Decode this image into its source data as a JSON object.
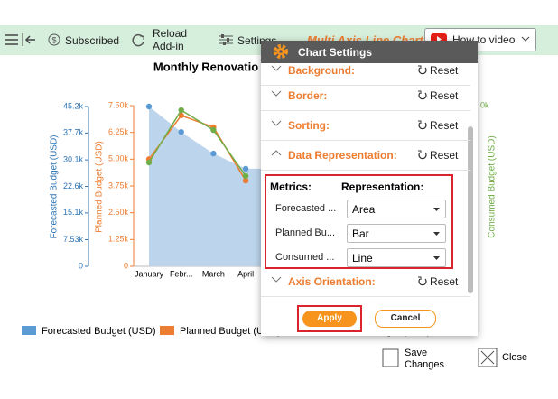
{
  "toolbar": {
    "subscribed": "Subscribed",
    "reload": [
      "Reload",
      "Add-in"
    ],
    "settings": "Settings",
    "chart_name": "Multi Axis Line Chart",
    "video": "How to video"
  },
  "chart": {
    "title": "Monthly Renovatio",
    "categories": [
      "January",
      "Febr...",
      "March",
      "April"
    ],
    "y_label": "Forecasted Budget (USD)",
    "ylim": [
      0,
      45200
    ],
    "yticks": [
      0,
      {
        "value": 7530,
        "label": "7.53k"
      },
      {
        "value": 15100,
        "label": "15.1k"
      },
      {
        "value": 22600,
        "label": "22.6k"
      },
      {
        "value": 30100,
        "label": "30.1k"
      },
      {
        "value": 37700,
        "label": "37.7k"
      },
      {
        "value": 45200,
        "label": "45.2k"
      }
    ],
    "y_color": "#2e75b6",
    "y3_label": "Planned Budget (USD)",
    "y3lim": [
      0,
      7500
    ],
    "y3ticks": [
      0,
      {
        "value": 1250,
        "label": "1.25k"
      },
      {
        "value": 2500,
        "label": "2.50k"
      },
      {
        "value": 3750,
        "label": "3.75k"
      },
      {
        "value": 5000,
        "label": "5.00k"
      },
      {
        "value": 6250,
        "label": "6.25k"
      },
      {
        "value": 7500,
        "label": "7.50k"
      }
    ],
    "y3_color": "#ed7d31",
    "y2_label": "Consumed Budget (USD)",
    "y2lim": [
      0,
      50000
    ],
    "y2_tick_fragment": "0k",
    "y2_color": "#70ad47",
    "series": [
      {
        "name": "Forecasted Budget (USD)",
        "color": "#5b9bd5",
        "values": [
          45200,
          38000,
          31900,
          27600
        ]
      },
      {
        "name": "Planned Budget (USD)",
        "color": "#ed7d31",
        "axis": "y3",
        "values": [
          5000,
          7040,
          6490,
          4000
        ]
      },
      {
        "name": "Consumed Budget (USD)",
        "color": "#70ad47",
        "axis": "y2",
        "values": [
          32300,
          48600,
          42400,
          28100
        ]
      }
    ]
  },
  "footer": {
    "save": [
      "Save",
      "Changes"
    ],
    "close": "Close"
  },
  "dialog": {
    "title": "Chart Settings",
    "sections": [
      {
        "label": "Background:",
        "reset": "Reset"
      },
      {
        "label": "Border:",
        "reset": "Reset"
      },
      {
        "label": "Sorting:",
        "reset": "Reset"
      },
      {
        "label": "Data Representation:",
        "reset": "Reset"
      }
    ],
    "metrics_header": "Metrics:",
    "representation_header": "Representation:",
    "rows": [
      {
        "metric": "Forecasted ...",
        "representation": "Area"
      },
      {
        "metric": "Planned Bu...",
        "representation": "Bar"
      },
      {
        "metric": "Consumed ...",
        "representation": "Line"
      }
    ],
    "axis_section": {
      "label": "Axis Orientation:",
      "reset": "Reset"
    },
    "apply": "Apply",
    "cancel": "Cancel"
  }
}
